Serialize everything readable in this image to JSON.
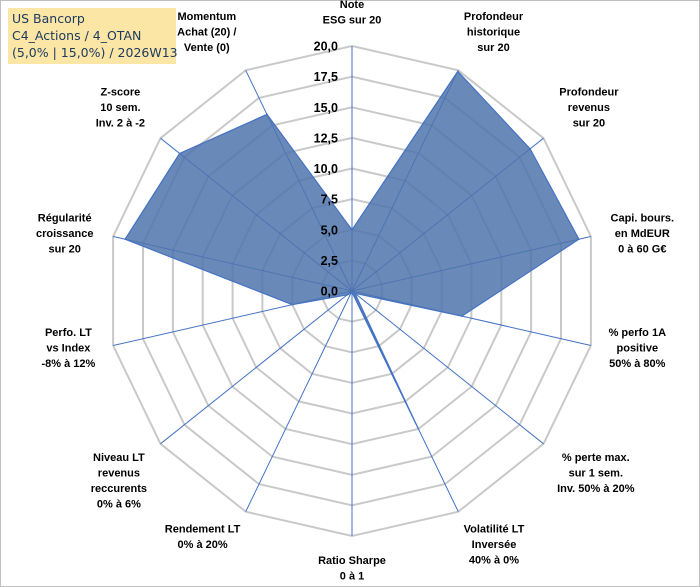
{
  "title": {
    "line1": "US Bancorp",
    "line2": "C4_Actions / 4_OTAN",
    "line3": "(5,0% | 15,0%) / 2026W13"
  },
  "chart_data": {
    "type": "radar",
    "title": "US Bancorp",
    "subtitle": "C4_Actions / 4_OTAN (5,0% | 15,0%) / 2026W13",
    "rmin": 0,
    "rmax": 20,
    "tick_step": 2.5,
    "tick_labels": [
      "0,0",
      "2,5",
      "5,0",
      "7,5",
      "10,0",
      "12,5",
      "15,0",
      "17,5",
      "20,0"
    ],
    "axes": [
      [
        "Note",
        "ESG sur 20"
      ],
      [
        "Profondeur",
        "historique",
        "sur 20"
      ],
      [
        "Profondeur",
        "revenus",
        "sur 20"
      ],
      [
        "Capi. bours.",
        "en MdEUR",
        "0 à 60 G€"
      ],
      [
        "% perfo 1A",
        "positive",
        "50% à 80%"
      ],
      [
        "% perte max.",
        "sur 1 sem.",
        "Inv. 50% à 20%"
      ],
      [
        "Volatilité LT",
        "Inversée",
        "40% à 0%"
      ],
      [
        "Ratio Sharpe",
        "0 à 1"
      ],
      [
        "Rendement LT",
        "0% à 20%"
      ],
      [
        "Niveau LT",
        "revenus",
        "reccurents",
        "0% à 6%"
      ],
      [
        "Perfo. LT",
        "vs Index",
        "-8% à 12%"
      ],
      [
        "Régularité",
        "croissance",
        "sur 20"
      ],
      [
        "Z-score",
        "10 sem.",
        "Inv. 2 à -2"
      ],
      [
        "Momentum",
        "Achat (20) /",
        "Vente (0)"
      ]
    ],
    "series": [
      {
        "name": "US Bancorp",
        "color": "#4f74ad",
        "values": [
          5.0,
          19.9,
          18.6,
          19.0,
          9.2,
          0.3,
          12.4,
          0.1,
          0.2,
          0.5,
          5.0,
          19.0,
          18.0,
          16.0
        ]
      }
    ],
    "grid": true,
    "legend": "none"
  }
}
